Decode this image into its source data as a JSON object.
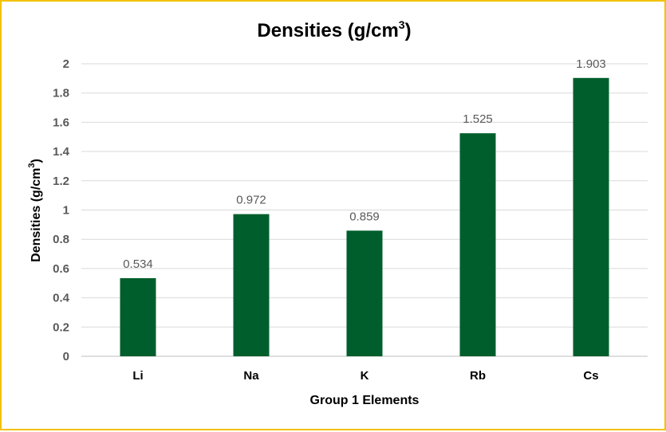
{
  "chart_data": {
    "type": "bar",
    "title": "Densities (g/cm",
    "title_sup": "3",
    "title_end": ")",
    "xlabel": "Group 1 Elements",
    "ylabel": "Densities (g/cm",
    "ylabel_sup": "3",
    "ylabel_end": ")",
    "categories": [
      "Li",
      "Na",
      "K",
      "Rb",
      "Cs"
    ],
    "values": [
      0.534,
      0.972,
      0.859,
      1.525,
      1.903
    ],
    "data_labels": [
      "0.534",
      "0.972",
      "0.859",
      "1.525",
      "1.903"
    ],
    "ylim": [
      0,
      2
    ],
    "yticks": [
      "0",
      "0.2",
      "0.4",
      "0.6",
      "0.8",
      "1",
      "1.2",
      "1.4",
      "1.6",
      "1.8",
      "2"
    ],
    "grid": true,
    "bar_color": "#005e2c",
    "border_color": "#f2c200"
  }
}
